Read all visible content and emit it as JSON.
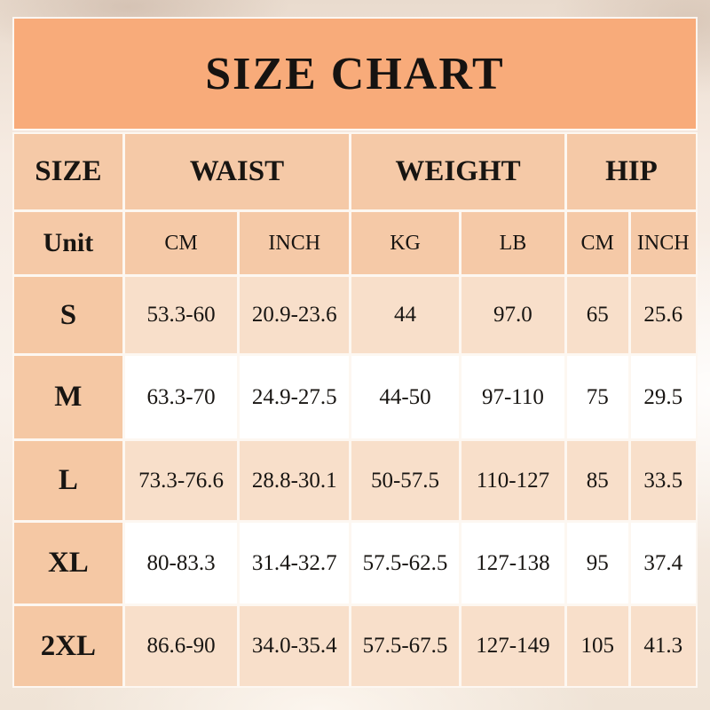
{
  "title": "SIZE CHART",
  "colors": {
    "title_bg": "#f8ab7a",
    "header_bg": "#f5c9a7",
    "row_label_bg": "#f5c8a4",
    "row_peach_bg": "#f8dfca",
    "row_white_bg": "#ffffff",
    "text": "#181512",
    "page_bg": "#f4e9de"
  },
  "chart_data": {
    "type": "table",
    "title": "SIZE CHART",
    "column_groups": [
      {
        "label": "SIZE",
        "span": 1
      },
      {
        "label": "WAIST",
        "span": 2
      },
      {
        "label": "WEIGHT",
        "span": 2
      },
      {
        "label": "HIP",
        "span": 2
      }
    ],
    "unit_row": {
      "label": "Unit",
      "units": [
        "CM",
        "INCH",
        "KG",
        "LB",
        "CM",
        "INCH"
      ]
    },
    "rows": [
      {
        "size": "S",
        "values": [
          "53.3-60",
          "20.9-23.6",
          "44",
          "97.0",
          "65",
          "25.6"
        ]
      },
      {
        "size": "M",
        "values": [
          "63.3-70",
          "24.9-27.5",
          "44-50",
          "97-110",
          "75",
          "29.5"
        ]
      },
      {
        "size": "L",
        "values": [
          "73.3-76.6",
          "28.8-30.1",
          "50-57.5",
          "110-127",
          "85",
          "33.5"
        ]
      },
      {
        "size": "XL",
        "values": [
          "80-83.3",
          "31.4-32.7",
          "57.5-62.5",
          "127-138",
          "95",
          "37.4"
        ]
      },
      {
        "size": "2XL",
        "values": [
          "86.6-90",
          "34.0-35.4",
          "57.5-67.5",
          "127-149",
          "105",
          "41.3"
        ]
      }
    ]
  }
}
